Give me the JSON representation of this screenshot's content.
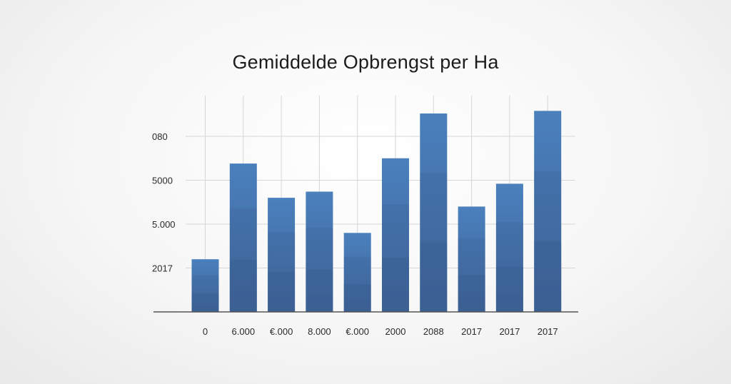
{
  "chart_data": {
    "type": "bar",
    "title": "Gemiddelde Opbrengst per Ha",
    "xlabel": "",
    "ylabel": "",
    "categories": [
      "0",
      "6.000",
      "€.000",
      "8.000",
      "€.000",
      "2000",
      "2088",
      "2017",
      "2017",
      "2017"
    ],
    "values": [
      1.2,
      3.38,
      2.6,
      2.74,
      1.8,
      3.5,
      4.52,
      2.4,
      2.92,
      4.58
    ],
    "ylim": [
      0,
      5
    ],
    "y_ticks": [
      {
        "value": 1,
        "label": "2017"
      },
      {
        "value": 2,
        "label": "5.000"
      },
      {
        "value": 3,
        "label": "5000"
      },
      {
        "value": 4,
        "label": "080"
      }
    ],
    "grid": true,
    "legend": "none",
    "colors": {
      "bar_top": "#4a80bd",
      "bar_bottom": "#3f6398",
      "grid": "#d6d6d6",
      "axis": "#555555"
    }
  }
}
